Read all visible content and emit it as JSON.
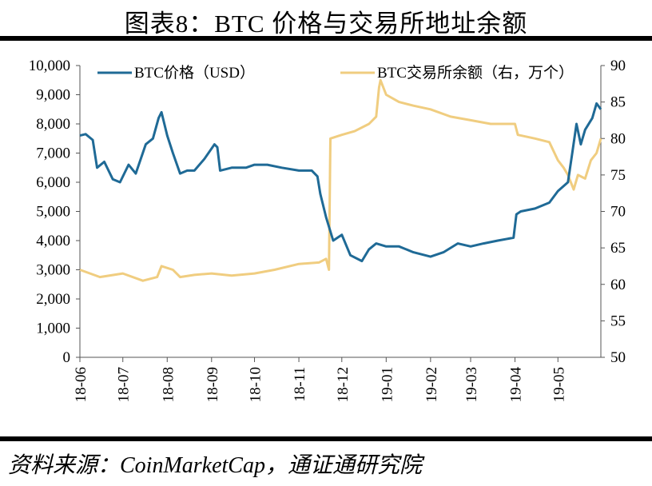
{
  "title": "图表8：BTC 价格与交易所地址余额",
  "source": "资料来源：CoinMarketCap，通证通研究院",
  "chart_data": {
    "type": "line",
    "title": "图表8：BTC 价格与交易所地址余额",
    "x_ticks": [
      "18-06",
      "18-07",
      "18-08",
      "18-09",
      "18-10",
      "18-11",
      "18-12",
      "19-01",
      "19-02",
      "19-03",
      "19-04",
      "19-05"
    ],
    "x_range": [
      "2018-06-01",
      "2019-05-31"
    ],
    "y_left": {
      "range": [
        0,
        10000
      ],
      "ticks": [
        "0",
        "1,000",
        "2,000",
        "3,000",
        "4,000",
        "5,000",
        "6,000",
        "7,000",
        "8,000",
        "9,000",
        "10,000"
      ]
    },
    "y_right": {
      "range": [
        50,
        90
      ],
      "ticks": [
        "50",
        "55",
        "60",
        "65",
        "70",
        "75",
        "80",
        "85",
        "90"
      ]
    },
    "grid": false,
    "legend_position": "top",
    "series": [
      {
        "name": "BTC价格（USD）",
        "axis": "left",
        "color": "#1f6a96",
        "points": [
          [
            "2018-06-01",
            7600
          ],
          [
            "2018-06-05",
            7650
          ],
          [
            "2018-06-10",
            7450
          ],
          [
            "2018-06-13",
            6500
          ],
          [
            "2018-06-18",
            6700
          ],
          [
            "2018-06-24",
            6100
          ],
          [
            "2018-06-29",
            6000
          ],
          [
            "2018-07-05",
            6600
          ],
          [
            "2018-07-10",
            6300
          ],
          [
            "2018-07-17",
            7300
          ],
          [
            "2018-07-22",
            7500
          ],
          [
            "2018-07-26",
            8200
          ],
          [
            "2018-07-28",
            8400
          ],
          [
            "2018-08-01",
            7600
          ],
          [
            "2018-08-05",
            7000
          ],
          [
            "2018-08-10",
            6300
          ],
          [
            "2018-08-15",
            6400
          ],
          [
            "2018-08-20",
            6400
          ],
          [
            "2018-08-27",
            6800
          ],
          [
            "2018-09-03",
            7300
          ],
          [
            "2018-09-05",
            7200
          ],
          [
            "2018-09-07",
            6400
          ],
          [
            "2018-09-15",
            6500
          ],
          [
            "2018-09-25",
            6500
          ],
          [
            "2018-10-01",
            6600
          ],
          [
            "2018-10-10",
            6600
          ],
          [
            "2018-10-20",
            6500
          ],
          [
            "2018-11-01",
            6400
          ],
          [
            "2018-11-10",
            6400
          ],
          [
            "2018-11-14",
            6200
          ],
          [
            "2018-11-16",
            5600
          ],
          [
            "2018-11-20",
            4800
          ],
          [
            "2018-11-25",
            4000
          ],
          [
            "2018-12-01",
            4200
          ],
          [
            "2018-12-07",
            3500
          ],
          [
            "2018-12-15",
            3300
          ],
          [
            "2018-12-20",
            3700
          ],
          [
            "2018-12-25",
            3900
          ],
          [
            "2019-01-01",
            3800
          ],
          [
            "2019-01-10",
            3800
          ],
          [
            "2019-01-20",
            3600
          ],
          [
            "2019-02-01",
            3450
          ],
          [
            "2019-02-10",
            3600
          ],
          [
            "2019-02-20",
            3900
          ],
          [
            "2019-03-01",
            3800
          ],
          [
            "2019-03-10",
            3900
          ],
          [
            "2019-03-20",
            4000
          ],
          [
            "2019-03-31",
            4100
          ],
          [
            "2019-04-02",
            4900
          ],
          [
            "2019-04-05",
            5000
          ],
          [
            "2019-04-15",
            5100
          ],
          [
            "2019-04-25",
            5300
          ],
          [
            "2019-05-01",
            5700
          ],
          [
            "2019-05-08",
            6000
          ],
          [
            "2019-05-11",
            7000
          ],
          [
            "2019-05-14",
            8000
          ],
          [
            "2019-05-17",
            7300
          ],
          [
            "2019-05-20",
            7800
          ],
          [
            "2019-05-25",
            8200
          ],
          [
            "2019-05-28",
            8700
          ],
          [
            "2019-05-31",
            8500
          ]
        ]
      },
      {
        "name": "BTC交易所余额（右，万个）",
        "axis": "right",
        "color": "#f0cd80",
        "points": [
          [
            "2018-06-01",
            62
          ],
          [
            "2018-06-15",
            61
          ],
          [
            "2018-07-01",
            61.5
          ],
          [
            "2018-07-15",
            60.5
          ],
          [
            "2018-07-25",
            61
          ],
          [
            "2018-07-28",
            62.5
          ],
          [
            "2018-08-05",
            62
          ],
          [
            "2018-08-10",
            61
          ],
          [
            "2018-08-20",
            61.3
          ],
          [
            "2018-09-01",
            61.5
          ],
          [
            "2018-09-15",
            61.2
          ],
          [
            "2018-10-01",
            61.5
          ],
          [
            "2018-10-15",
            62
          ],
          [
            "2018-11-01",
            62.8
          ],
          [
            "2018-11-15",
            63
          ],
          [
            "2018-11-20",
            63.5
          ],
          [
            "2018-11-22",
            62
          ],
          [
            "2018-11-23",
            80
          ],
          [
            "2018-12-01",
            80.5
          ],
          [
            "2018-12-10",
            81
          ],
          [
            "2018-12-20",
            82
          ],
          [
            "2018-12-25",
            83
          ],
          [
            "2018-12-27",
            87
          ],
          [
            "2018-12-28",
            88
          ],
          [
            "2019-01-01",
            86
          ],
          [
            "2019-01-10",
            85
          ],
          [
            "2019-01-20",
            84.5
          ],
          [
            "2019-02-01",
            84
          ],
          [
            "2019-02-15",
            83
          ],
          [
            "2019-03-01",
            82.5
          ],
          [
            "2019-03-15",
            82
          ],
          [
            "2019-04-01",
            82
          ],
          [
            "2019-04-03",
            80.5
          ],
          [
            "2019-04-15",
            80
          ],
          [
            "2019-04-25",
            79.5
          ],
          [
            "2019-05-01",
            77
          ],
          [
            "2019-05-05",
            76
          ],
          [
            "2019-05-08",
            75
          ],
          [
            "2019-05-12",
            73
          ],
          [
            "2019-05-15",
            75
          ],
          [
            "2019-05-20",
            74.5
          ],
          [
            "2019-05-24",
            77
          ],
          [
            "2019-05-28",
            78
          ],
          [
            "2019-05-31",
            80
          ]
        ]
      }
    ]
  }
}
